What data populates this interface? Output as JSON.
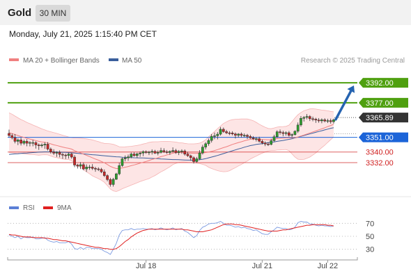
{
  "header": {
    "instrument": "Gold",
    "timeframe": "30 MIN"
  },
  "timestamp": "Monday, July 21, 2025 1:15:40 PM CET",
  "legend": {
    "ma20": {
      "label": "MA 20 + Bollinger Bands",
      "color": "#f08080"
    },
    "ma50": {
      "label": "MA 50",
      "color": "#3a5e9c"
    }
  },
  "copyright": "Research © 2025 Trading Central",
  "rsi_legend": {
    "rsi": {
      "label": "RSI",
      "color": "#5b7fd6"
    },
    "ma9": {
      "label": "9MA",
      "color": "#e02020"
    }
  },
  "chart_data": {
    "type": "candlestick",
    "price_axis": {
      "ylim": [
        3308,
        3402
      ]
    },
    "x_tick_labels": [
      "Jul 18",
      "Jul 21",
      "Jul 22"
    ],
    "levels": [
      {
        "label": "3392.00",
        "value": 3392.0,
        "kind": "resistance",
        "color": "#4fa010"
      },
      {
        "label": "3377.00",
        "value": 3377.0,
        "kind": "resistance",
        "color": "#4fa010"
      },
      {
        "label": "3365.89",
        "value": 3365.89,
        "kind": "last",
        "color": "#333333"
      },
      {
        "label": "3351.00",
        "value": 3351.0,
        "kind": "pivot",
        "color": "#1c64d8"
      },
      {
        "label": "3340.00",
        "value": 3340.0,
        "kind": "support",
        "color": "#d02020"
      },
      {
        "label": "3332.00",
        "value": 3332.0,
        "kind": "support",
        "color": "#d02020"
      }
    ],
    "projection": {
      "from": 3364.5,
      "to": 3390.0,
      "color": "#2563b0"
    },
    "rsi_axis": {
      "ylim": [
        20,
        80
      ],
      "ticks": [
        "70",
        "50",
        "30"
      ]
    },
    "candles": [
      [
        3354.0,
        3356.8,
        3351.2,
        3352.4
      ],
      [
        3352.4,
        3353.9,
        3349.5,
        3350.8
      ],
      [
        3350.8,
        3353.5,
        3346.5,
        3348.0
      ],
      [
        3348.0,
        3350.2,
        3345.2,
        3349.1
      ],
      [
        3349.1,
        3350.8,
        3344.9,
        3346.6
      ],
      [
        3346.6,
        3349.3,
        3345.3,
        3348.1
      ],
      [
        3348.1,
        3349.7,
        3344.3,
        3346.6
      ],
      [
        3346.6,
        3348.2,
        3344.2,
        3347.1
      ],
      [
        3347.1,
        3349.1,
        3344.3,
        3347.1
      ],
      [
        3347.1,
        3348.1,
        3342.6,
        3345.3
      ],
      [
        3345.3,
        3346.4,
        3341.6,
        3344.7
      ],
      [
        3344.7,
        3346.5,
        3343.3,
        3345.3
      ],
      [
        3345.3,
        3347.4,
        3342.4,
        3345.9
      ],
      [
        3345.9,
        3347.4,
        3341.1,
        3342.2
      ],
      [
        3342.2,
        3343.4,
        3338.8,
        3340.0
      ],
      [
        3340.0,
        3342.1,
        3337.8,
        3339.1
      ],
      [
        3339.1,
        3340.6,
        3336.3,
        3339.7
      ],
      [
        3339.7,
        3341.2,
        3336.0,
        3338.2
      ],
      [
        3338.2,
        3339.4,
        3334.9,
        3337.7
      ],
      [
        3337.7,
        3338.8,
        3334.7,
        3337.4
      ],
      [
        3337.4,
        3339.4,
        3335.0,
        3338.5
      ],
      [
        3338.5,
        3339.5,
        3335.0,
        3336.2
      ],
      [
        3336.2,
        3337.7,
        3328.6,
        3330.2
      ],
      [
        3330.2,
        3331.1,
        3327.6,
        3329.4
      ],
      [
        3329.4,
        3332.4,
        3327.2,
        3330.5
      ],
      [
        3330.5,
        3332.1,
        3326.3,
        3327.3
      ],
      [
        3327.3,
        3330.7,
        3325.1,
        3328.7
      ],
      [
        3328.7,
        3330.3,
        3326.6,
        3328.7
      ],
      [
        3328.7,
        3330.9,
        3326.5,
        3327.7
      ],
      [
        3327.7,
        3328.9,
        3325.2,
        3327.3
      ],
      [
        3327.3,
        3328.5,
        3325.7,
        3327.0
      ],
      [
        3327.0,
        3328.1,
        3324.1,
        3325.1
      ],
      [
        3325.1,
        3326.9,
        3321.2,
        3322.3
      ],
      [
        3322.3,
        3323.3,
        3318.0,
        3319.3
      ],
      [
        3319.3,
        3320.6,
        3314.0,
        3315.6
      ],
      [
        3315.6,
        3320.6,
        3314.0,
        3319.5
      ],
      [
        3319.5,
        3324.4,
        3319.0,
        3323.6
      ],
      [
        3323.6,
        3331.9,
        3322.5,
        3329.8
      ],
      [
        3329.8,
        3335.8,
        3328.9,
        3334.9
      ],
      [
        3334.9,
        3337.4,
        3333.0,
        3335.6
      ],
      [
        3335.6,
        3338.1,
        3333.4,
        3336.4
      ],
      [
        3336.4,
        3339.6,
        3335.3,
        3338.5
      ],
      [
        3338.5,
        3339.8,
        3336.5,
        3337.3
      ],
      [
        3337.3,
        3339.5,
        3335.6,
        3338.6
      ],
      [
        3338.6,
        3340.4,
        3336.4,
        3339.2
      ],
      [
        3339.2,
        3341.2,
        3336.9,
        3340.3
      ],
      [
        3340.3,
        3341.2,
        3338.7,
        3339.6
      ],
      [
        3339.6,
        3340.9,
        3337.7,
        3339.9
      ],
      [
        3339.9,
        3342.0,
        3338.1,
        3340.5
      ],
      [
        3340.5,
        3341.6,
        3338.5,
        3339.1
      ],
      [
        3339.1,
        3341.2,
        3337.5,
        3339.7
      ],
      [
        3339.7,
        3343.2,
        3338.9,
        3341.1
      ],
      [
        3341.1,
        3342.8,
        3339.3,
        3340.2
      ],
      [
        3340.2,
        3341.5,
        3338.7,
        3339.6
      ],
      [
        3339.6,
        3341.2,
        3337.9,
        3340.5
      ],
      [
        3340.5,
        3343.5,
        3339.5,
        3341.1
      ],
      [
        3341.1,
        3342.4,
        3338.6,
        3339.6
      ],
      [
        3339.6,
        3341.5,
        3337.7,
        3340.5
      ],
      [
        3340.5,
        3342.0,
        3338.7,
        3340.8
      ],
      [
        3340.8,
        3341.9,
        3337.3,
        3338.4
      ],
      [
        3338.4,
        3340.1,
        3336.3,
        3337.2
      ],
      [
        3337.2,
        3338.1,
        3333.5,
        3335.7
      ],
      [
        3335.7,
        3336.7,
        3331.4,
        3332.8
      ],
      [
        3332.8,
        3336.3,
        3331.8,
        3334.9
      ],
      [
        3334.9,
        3341.4,
        3333.9,
        3339.3
      ],
      [
        3339.3,
        3345.4,
        3338.1,
        3343.7
      ],
      [
        3343.7,
        3347.4,
        3341.9,
        3346.2
      ],
      [
        3346.2,
        3350.1,
        3344.7,
        3348.7
      ],
      [
        3348.7,
        3353.5,
        3347.1,
        3351.8
      ],
      [
        3351.8,
        3354.6,
        3349.6,
        3352.2
      ],
      [
        3352.2,
        3355.0,
        3349.5,
        3353.4
      ],
      [
        3353.4,
        3358.8,
        3352.4,
        3357.1
      ],
      [
        3357.1,
        3358.4,
        3354.4,
        3355.3
      ],
      [
        3355.3,
        3356.6,
        3353.5,
        3354.4
      ],
      [
        3354.4,
        3355.7,
        3352.7,
        3354.3
      ],
      [
        3354.3,
        3355.6,
        3352.5,
        3353.6
      ],
      [
        3353.6,
        3354.7,
        3350.2,
        3352.6
      ],
      [
        3352.6,
        3354.2,
        3351.0,
        3353.5
      ],
      [
        3353.5,
        3354.7,
        3351.0,
        3352.5
      ],
      [
        3352.5,
        3354.0,
        3351.2,
        3352.6
      ],
      [
        3352.6,
        3353.6,
        3349.8,
        3351.7
      ],
      [
        3351.7,
        3353.0,
        3349.9,
        3350.6
      ],
      [
        3350.6,
        3351.9,
        3349.0,
        3349.9
      ],
      [
        3349.9,
        3351.3,
        3347.9,
        3350.0
      ],
      [
        3350.0,
        3351.5,
        3347.1,
        3348.1
      ],
      [
        3348.1,
        3349.3,
        3345.7,
        3346.8
      ],
      [
        3346.8,
        3348.0,
        3344.4,
        3346.0
      ],
      [
        3346.0,
        3347.5,
        3344.5,
        3345.7
      ],
      [
        3345.7,
        3350.0,
        3345.0,
        3348.5
      ],
      [
        3348.5,
        3353.0,
        3347.8,
        3351.5
      ],
      [
        3351.5,
        3356.3,
        3350.5,
        3355.2
      ],
      [
        3355.2,
        3356.9,
        3353.1,
        3354.6
      ],
      [
        3354.6,
        3356.0,
        3351.8,
        3353.9
      ],
      [
        3353.9,
        3355.5,
        3352.3,
        3354.5
      ],
      [
        3354.5,
        3355.8,
        3351.5,
        3352.5
      ],
      [
        3352.5,
        3354.1,
        3350.7,
        3353.1
      ],
      [
        3353.1,
        3356.3,
        3352.4,
        3355.6
      ],
      [
        3355.6,
        3362.2,
        3354.3,
        3360.3
      ],
      [
        3360.3,
        3367.0,
        3359.0,
        3365.3
      ],
      [
        3365.3,
        3367.0,
        3362.9,
        3366.0
      ],
      [
        3366.0,
        3368.5,
        3364.5,
        3366.7
      ],
      [
        3366.7,
        3367.7,
        3363.3,
        3365.0
      ],
      [
        3365.0,
        3366.6,
        3363.1,
        3364.7
      ],
      [
        3364.7,
        3365.7,
        3361.9,
        3364.0
      ],
      [
        3364.0,
        3365.5,
        3362.0,
        3363.4
      ],
      [
        3363.4,
        3365.3,
        3361.6,
        3364.2
      ],
      [
        3364.2,
        3365.4,
        3362.3,
        3363.3
      ],
      [
        3363.3,
        3365.0,
        3361.8,
        3363.6
      ],
      [
        3363.6,
        3365.1,
        3361.3,
        3362.8
      ],
      [
        3362.8,
        3365.1,
        3361.3,
        3364.2
      ]
    ],
    "ma20": [
      3354.5,
      3353.9,
      3353.1,
      3352.4,
      3351.6,
      3351.0,
      3350.3,
      3349.7,
      3349.2,
      3348.6,
      3348.0,
      3347.6,
      3347.3,
      3346.8,
      3346.1,
      3345.4,
      3344.9,
      3344.3,
      3343.7,
      3343.2,
      3342.8,
      3342.2,
      3341.0,
      3340.1,
      3339.4,
      3338.4,
      3337.5,
      3336.6,
      3335.6,
      3334.7,
      3333.9,
      3332.9,
      3331.9,
      3330.6,
      3329.2,
      3328.3,
      3327.6,
      3327.6,
      3328.1,
      3328.6,
      3329.1,
      3329.7,
      3330.3,
      3330.9,
      3331.6,
      3332.3,
      3332.9,
      3333.6,
      3334.4,
      3335.0,
      3335.7,
      3336.5,
      3337.1,
      3337.8,
      3338.4,
      3339.1,
      3339.5,
      3339.6,
      3339.7,
      3339.5,
      3339.2,
      3339.1,
      3339.0,
      3339.0,
      3339.0,
      3339.2,
      3339.6,
      3340.0,
      3340.5,
      3341.1,
      3341.8,
      3342.5,
      3343.3,
      3344.0,
      3344.8,
      3345.7,
      3346.4,
      3347.1,
      3347.7,
      3348.4,
      3349.0,
      3349.5,
      3349.7,
      3349.6,
      3349.5,
      3349.4,
      3349.3,
      3349.2,
      3349.3,
      3349.6,
      3350.1,
      3350.3,
      3350.4,
      3350.6,
      3350.6,
      3350.7,
      3350.9,
      3351.3,
      3352.0,
      3352.7,
      3353.5,
      3354.3,
      3355.1,
      3355.8,
      3356.6,
      3357.4,
      3358.2,
      3359.1,
      3359.9,
      3360.8
    ],
    "bb_upper": [
      3369.4,
      3368.4,
      3367.0,
      3365.7,
      3364.4,
      3363.4,
      3362.2,
      3361.3,
      3360.3,
      3359.4,
      3358.4,
      3357.4,
      3356.6,
      3355.8,
      3355.2,
      3354.6,
      3354.0,
      3353.3,
      3352.6,
      3352.0,
      3351.3,
      3350.8,
      3350.5,
      3350.5,
      3350.4,
      3350.2,
      3349.9,
      3349.5,
      3349.1,
      3348.4,
      3347.8,
      3347.0,
      3346.5,
      3346.4,
      3346.2,
      3345.8,
      3344.9,
      3344.0,
      3343.8,
      3343.9,
      3344.1,
      3344.3,
      3344.6,
      3344.9,
      3345.4,
      3346.0,
      3346.5,
      3347.2,
      3347.6,
      3347.7,
      3347.7,
      3347.9,
      3348.0,
      3348.0,
      3347.9,
      3347.7,
      3347.5,
      3347.0,
      3346.9,
      3346.5,
      3346.2,
      3346.1,
      3346.1,
      3346.3,
      3346.7,
      3347.7,
      3349.2,
      3351.4,
      3353.4,
      3355.4,
      3357.6,
      3359.5,
      3361.4,
      3362.7,
      3363.7,
      3364.3,
      3364.6,
      3364.7,
      3364.8,
      3364.8,
      3364.8,
      3364.3,
      3363.5,
      3362.3,
      3360.9,
      3359.7,
      3358.6,
      3357.7,
      3357.5,
      3358.1,
      3358.7,
      3359.0,
      3359.1,
      3359.3,
      3360.2,
      3362.8,
      3365.6,
      3368.0,
      3369.7,
      3371.0,
      3371.7,
      3372.4,
      3372.5,
      3372.3,
      3371.9,
      3371.5,
      3371.3,
      3371.0,
      3370.5,
      3370.2
    ],
    "bb_lower": [
      3339.6,
      3339.4,
      3339.2,
      3339.1,
      3338.8,
      3338.6,
      3338.4,
      3338.1,
      3338.1,
      3337.8,
      3337.6,
      3337.8,
      3338.0,
      3337.8,
      3337.0,
      3336.2,
      3335.8,
      3335.3,
      3334.8,
      3334.4,
      3334.3,
      3333.6,
      3331.5,
      3329.7,
      3328.4,
      3326.6,
      3325.1,
      3323.7,
      3322.1,
      3321.0,
      3320.0,
      3318.8,
      3317.3,
      3314.8,
      3312.2,
      3310.8,
      3310.3,
      3311.2,
      3312.4,
      3313.3,
      3314.1,
      3315.1,
      3316.0,
      3316.9,
      3317.8,
      3318.6,
      3319.3,
      3320.0,
      3321.2,
      3322.3,
      3323.7,
      3325.1,
      3326.2,
      3327.6,
      3328.9,
      3330.5,
      3331.5,
      3332.2,
      3332.5,
      3332.5,
      3332.2,
      3332.1,
      3331.9,
      3331.7,
      3331.3,
      3330.7,
      3330.0,
      3328.6,
      3327.6,
      3326.8,
      3326.0,
      3325.5,
      3325.2,
      3325.3,
      3325.9,
      3327.1,
      3328.2,
      3329.5,
      3330.6,
      3332.0,
      3333.2,
      3334.7,
      3335.9,
      3336.9,
      3338.1,
      3339.1,
      3340.0,
      3340.7,
      3341.1,
      3341.1,
      3341.5,
      3341.6,
      3341.7,
      3341.9,
      3341.0,
      3338.6,
      3336.2,
      3334.6,
      3334.3,
      3334.4,
      3335.3,
      3336.2,
      3337.7,
      3339.3,
      3341.3,
      3343.3,
      3345.1,
      3347.2,
      3349.3,
      3351.4
    ],
    "ma50": [
      3338.2,
      3338.4,
      3338.6,
      3338.7,
      3338.9,
      3339.1,
      3339.2,
      3339.4,
      3339.6,
      3339.7,
      3339.9,
      3340.0,
      3340.1,
      3340.1,
      3340.1,
      3340.1,
      3340.0,
      3339.9,
      3339.8,
      3339.7,
      3339.6,
      3339.4,
      3339.2,
      3339.0,
      3338.8,
      3338.6,
      3338.4,
      3338.2,
      3338.0,
      3337.8,
      3337.6,
      3337.4,
      3337.2,
      3337.0,
      3336.8,
      3336.6,
      3336.4,
      3336.3,
      3336.1,
      3336.0,
      3335.9,
      3335.8,
      3335.7,
      3335.6,
      3335.5,
      3335.5,
      3335.4,
      3335.3,
      3335.2,
      3335.1,
      3335.0,
      3334.8,
      3334.7,
      3334.6,
      3334.4,
      3334.3,
      3334.3,
      3334.2,
      3334.1,
      3334.0,
      3333.9,
      3333.9,
      3333.8,
      3333.9,
      3334.2,
      3334.6,
      3335.0,
      3335.6,
      3336.2,
      3336.8,
      3337.4,
      3338.1,
      3338.8,
      3339.5,
      3340.2,
      3340.9,
      3341.6,
      3342.3,
      3342.9,
      3343.6,
      3344.2,
      3344.8,
      3345.2,
      3345.7,
      3346.0,
      3346.3,
      3346.7,
      3347.0,
      3347.3,
      3347.6,
      3348.0,
      3348.3,
      3348.7,
      3349.1,
      3349.5,
      3350.0,
      3350.6,
      3351.2,
      3351.8,
      3352.4,
      3353.0,
      3353.6,
      3354.2,
      3354.8,
      3355.4,
      3356.0,
      3356.6,
      3357.2,
      3357.8,
      3358.3
    ],
    "rsi": [
      52,
      50,
      48,
      50,
      46,
      49,
      48,
      48,
      49,
      46,
      46,
      47,
      48,
      44,
      42,
      41,
      42,
      40,
      40,
      40,
      42,
      38,
      31,
      30,
      33,
      30,
      33,
      33,
      31,
      31,
      31,
      30,
      27,
      25,
      22,
      30,
      39,
      52,
      59,
      60,
      60,
      62,
      60,
      61,
      61,
      62,
      61,
      61,
      62,
      60,
      61,
      63,
      61,
      60,
      61,
      63,
      60,
      61,
      62,
      58,
      56,
      52,
      48,
      51,
      59,
      64,
      66,
      69,
      70,
      70,
      71,
      73,
      70,
      67,
      67,
      66,
      64,
      65,
      63,
      64,
      62,
      61,
      59,
      60,
      57,
      54,
      53,
      53,
      57,
      60,
      64,
      63,
      62,
      62,
      60,
      61,
      64,
      71,
      73,
      72,
      72,
      69,
      69,
      67,
      66,
      67,
      66,
      66,
      65,
      66
    ],
    "rsi_ma9": [
      53,
      52,
      52,
      51,
      50,
      49,
      49,
      49,
      48,
      48,
      48,
      48,
      47,
      47,
      46,
      45,
      45,
      44,
      43,
      43,
      42,
      41,
      40,
      39,
      38,
      37,
      36,
      35,
      34,
      33,
      33,
      32,
      31,
      31,
      30,
      30,
      31,
      34,
      38,
      42,
      45,
      49,
      52,
      55,
      57,
      59,
      60,
      61,
      61,
      61,
      61,
      61,
      61,
      61,
      61,
      61,
      61,
      61,
      61,
      60,
      60,
      59,
      58,
      57,
      57,
      57,
      58,
      59,
      60,
      62,
      64,
      66,
      68,
      69,
      69,
      69,
      68,
      68,
      67,
      66,
      65,
      64,
      63,
      62,
      61,
      60,
      59,
      58,
      58,
      58,
      58,
      59,
      60,
      60,
      61,
      62,
      63,
      64,
      65,
      66,
      67,
      67,
      68,
      68,
      68,
      68,
      68,
      67,
      67,
      66
    ]
  }
}
